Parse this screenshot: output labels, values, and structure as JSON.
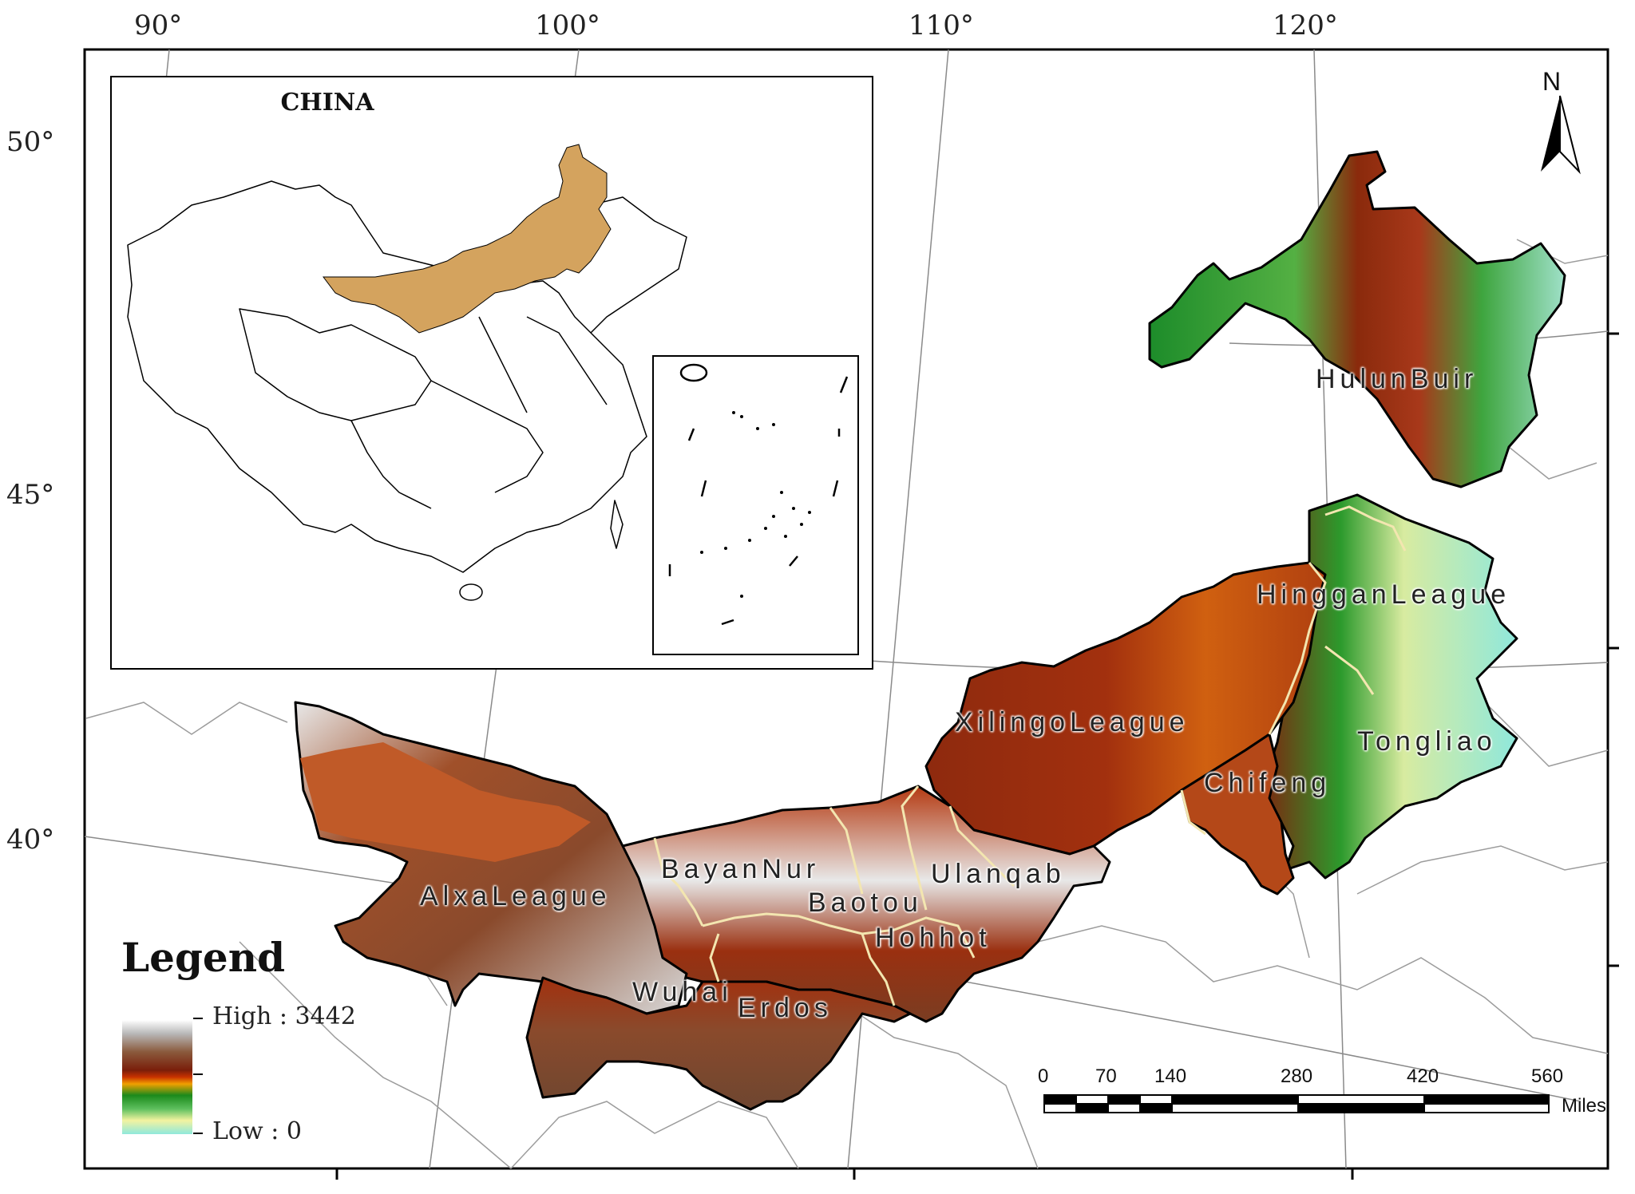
{
  "graticule": {
    "top_longitudes": [
      "90°",
      "100°",
      "110°",
      "120°"
    ],
    "left_latitudes": [
      "50°",
      "45°",
      "40°"
    ]
  },
  "inset": {
    "title": "CHINA",
    "highlight_color": "#d4a35e"
  },
  "regions": [
    {
      "name": "HulunBuir"
    },
    {
      "name": "HingganLeague"
    },
    {
      "name": "XilingoLeague"
    },
    {
      "name": "Tongliao"
    },
    {
      "name": "Chifeng"
    },
    {
      "name": "Ulanqab"
    },
    {
      "name": "BayanNur"
    },
    {
      "name": "Baotou"
    },
    {
      "name": "AlxaLeague"
    },
    {
      "name": "Hohhot"
    },
    {
      "name": "Wuhai"
    },
    {
      "name": "Erdos"
    }
  ],
  "legend": {
    "title": "Legend",
    "high_label": "High : 3442",
    "low_label": "Low : 0",
    "high_value": 3442,
    "low_value": 0
  },
  "north_arrow": {
    "label": "N",
    "icon": "north-arrow-icon"
  },
  "scale_bar": {
    "ticks": [
      "0",
      "70",
      "140",
      "280",
      "420",
      "560"
    ],
    "unit": "Miles"
  },
  "colors": {
    "elevation_high": "#ffffff",
    "elevation_mid": "#7a1e0a",
    "elevation_orange": "#f0a000",
    "elevation_green": "#1b8a1b",
    "elevation_low": "#8fe8dc",
    "boundary_internal": "#f3e6b0"
  }
}
